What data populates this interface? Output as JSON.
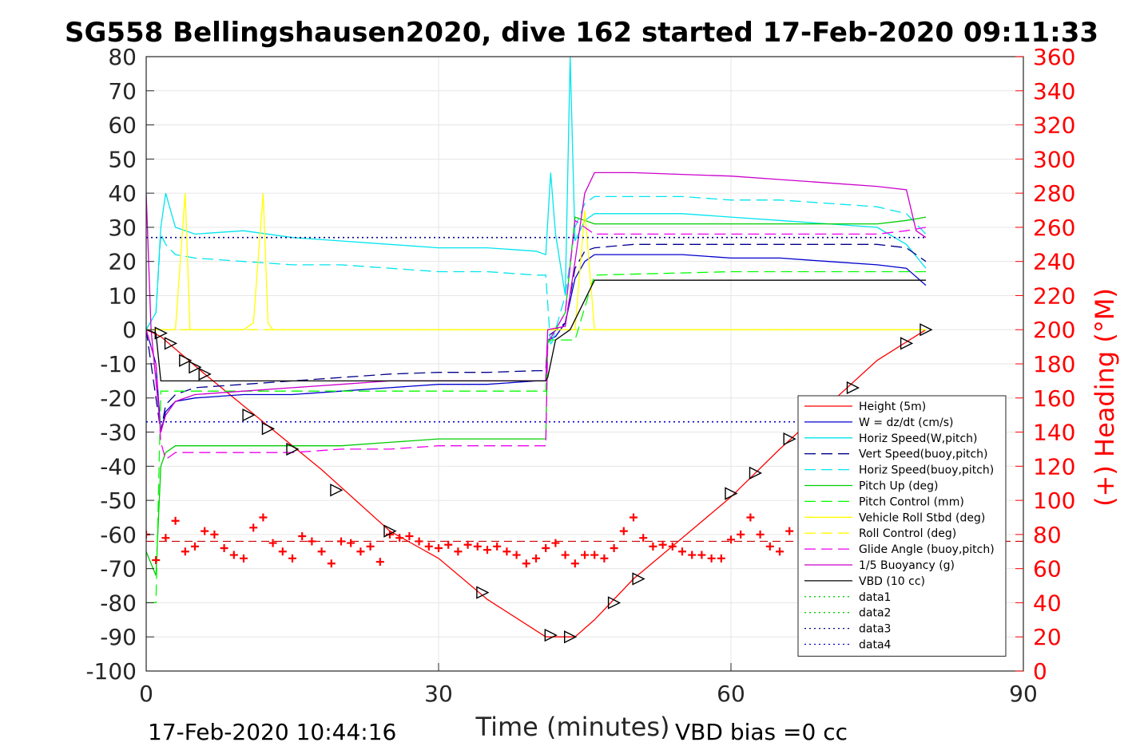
{
  "chart_data": {
    "type": "line",
    "title": "SG558 Bellingshausen2020, dive 162 started 17-Feb-2020 09:11:33",
    "xlabel": "Time (minutes)",
    "ylabel": "",
    "ylabel_right": "(+) Heading (°M)",
    "xlim": [
      0,
      90
    ],
    "ylim": [
      -100,
      80
    ],
    "ylim_right": [
      0,
      360
    ],
    "x_ticks": [
      "0",
      "30",
      "60",
      "90"
    ],
    "y_ticks": [
      "80",
      "70",
      "60",
      "50",
      "40",
      "30",
      "20",
      "10",
      "0",
      "-10",
      "-20",
      "-30",
      "-40",
      "-50",
      "-60",
      "-70",
      "-80",
      "-90",
      "-100"
    ],
    "y_ticks_right": [
      "360",
      "340",
      "320",
      "300",
      "280",
      "260",
      "240",
      "220",
      "200",
      "180",
      "160",
      "140",
      "120",
      "100",
      "80",
      "60",
      "40",
      "20",
      "0"
    ],
    "grid": true,
    "legend_position": "lower-right",
    "footer_left": "17-Feb-2020 10:44:16",
    "footer_right": "VBD bias =0 cc",
    "series": [
      {
        "name": "Height (5m)",
        "color": "#ff0000",
        "style": "solid",
        "x": [
          0,
          1.5,
          6,
          12,
          18,
          25,
          30,
          35,
          41,
          44,
          46,
          50,
          55,
          60,
          65,
          70,
          75,
          80
        ],
        "y": [
          0,
          -2,
          -13,
          -27,
          -41,
          -59,
          -67,
          -79,
          -90,
          -90,
          -85,
          -73,
          -61,
          -49,
          -35,
          -22,
          -9,
          0
        ]
      },
      {
        "name": "W = dz/dt (cm/s)",
        "color": "#0000cd",
        "style": "solid",
        "x": [
          0,
          1,
          1.5,
          2,
          3,
          5,
          10,
          15,
          20,
          25,
          30,
          35,
          40,
          41,
          41.2,
          42,
          43,
          44,
          45,
          46,
          50,
          55,
          60,
          65,
          70,
          75,
          78,
          80
        ],
        "y": [
          0,
          -10,
          -30,
          -24,
          -21,
          -20,
          -19,
          -19,
          -18,
          -17,
          -16,
          -16,
          -15,
          -15,
          -3,
          -2,
          2,
          15,
          20,
          22,
          22,
          22,
          21,
          21,
          20,
          19,
          18,
          13
        ]
      },
      {
        "name": "Horiz Speed(W,pitch)",
        "color": "#00e5ee",
        "style": "solid",
        "x": [
          0,
          1,
          1.5,
          2,
          3,
          5,
          10,
          15,
          20,
          25,
          30,
          35,
          40,
          41,
          41.5,
          42,
          43,
          43.5,
          44,
          45,
          46,
          50,
          55,
          60,
          65,
          70,
          75,
          78,
          80
        ],
        "y": [
          0,
          5,
          30,
          40,
          30,
          28,
          29,
          27,
          26,
          25,
          24,
          24,
          23,
          22,
          46,
          28,
          10,
          80,
          26,
          32,
          34,
          34,
          34,
          33,
          32,
          31,
          30,
          25,
          18
        ]
      },
      {
        "name": "Vert Speed(buoy,pitch)",
        "color": "#00008b",
        "style": "dashed",
        "x": [
          0,
          1.5,
          2,
          3,
          5,
          10,
          15,
          20,
          25,
          30,
          35,
          40,
          41,
          41.2,
          43,
          44,
          45,
          46,
          50,
          55,
          60,
          65,
          70,
          75,
          78,
          80
        ],
        "y": [
          0,
          -30,
          -22,
          -19,
          -17,
          -16,
          -15,
          -14,
          -13,
          -12.5,
          -12.5,
          -12,
          -12,
          -2,
          2,
          18,
          23,
          24,
          25,
          25,
          25,
          25,
          25,
          25,
          24,
          20
        ]
      },
      {
        "name": "Horiz Speed(buoy,pitch)",
        "color": "#00e5ee",
        "style": "dashed",
        "x": [
          0,
          1,
          1.5,
          2,
          3,
          5,
          10,
          15,
          20,
          25,
          30,
          35,
          40,
          41,
          41.5,
          43,
          44,
          45,
          46,
          50,
          55,
          60,
          65,
          70,
          75,
          78,
          80
        ],
        "y": [
          0,
          5,
          28,
          25,
          22,
          21,
          20,
          19,
          19,
          18,
          17,
          17,
          16,
          16,
          -5,
          10,
          30,
          37,
          39,
          39,
          39,
          38,
          38,
          37,
          36,
          34,
          28
        ]
      },
      {
        "name": "Pitch Up (deg)",
        "color": "#00cd00",
        "style": "solid",
        "x": [
          0,
          1,
          1.5,
          2,
          3,
          5,
          10,
          15,
          20,
          25,
          30,
          35,
          40,
          41,
          41.2,
          43,
          44,
          45,
          46,
          50,
          55,
          60,
          65,
          70,
          75,
          78,
          80
        ],
        "y": [
          -65,
          -72,
          -40,
          -36,
          -34,
          -34,
          -34,
          -34,
          -34,
          -33,
          -32,
          -32,
          -32,
          -32,
          -4,
          5,
          33,
          32,
          31,
          31,
          31,
          31,
          31,
          31,
          31,
          32,
          33
        ]
      },
      {
        "name": "Pitch Control (mm)",
        "color": "#00ff00",
        "style": "dashed",
        "x": [
          0,
          1,
          1.5,
          2,
          40,
          41,
          41.2,
          44,
          46,
          60,
          80
        ],
        "y": [
          -80,
          -80,
          -18,
          -18,
          -18,
          -18,
          -3,
          -3,
          16,
          17,
          17
        ]
      },
      {
        "name": "Vehicle Roll Stbd (deg)",
        "color": "#ffff00",
        "style": "solid",
        "x": [
          0,
          2,
          3,
          4,
          4.5,
          5,
          10,
          11,
          12,
          12.5,
          13,
          20,
          25,
          30,
          35,
          40,
          41,
          44,
          45,
          46,
          50,
          60,
          65,
          70,
          72,
          75,
          78,
          80
        ],
        "y": [
          0,
          0,
          0,
          40,
          0,
          0,
          0,
          2,
          40,
          2,
          0,
          0,
          0,
          0,
          0,
          0,
          0,
          0,
          35,
          0,
          0,
          0,
          0,
          0,
          0,
          0,
          0,
          0
        ]
      },
      {
        "name": "Roll Control (deg)",
        "color": "#ffff00",
        "style": "dashed",
        "x": [
          0,
          10,
          15,
          20,
          25,
          30,
          35,
          40,
          41,
          44,
          50,
          60,
          70,
          80
        ],
        "y": [
          0,
          0,
          0,
          0,
          0,
          0,
          0,
          0,
          0,
          0,
          0,
          0,
          0,
          0
        ]
      },
      {
        "name": "Glide Angle (buoy,pitch)",
        "color": "#ee00ee",
        "style": "dashed",
        "x": [
          0,
          1,
          1.5,
          2,
          3,
          5,
          10,
          15,
          20,
          25,
          30,
          35,
          40,
          41,
          41.2,
          43,
          44,
          45,
          46,
          50,
          55,
          60,
          65,
          70,
          75,
          78,
          80
        ],
        "y": [
          0,
          -10,
          -33,
          -38,
          -36,
          -36,
          -36,
          -36,
          -35,
          -35,
          -34,
          -34,
          -34,
          -34,
          -4,
          5,
          32,
          30,
          28,
          28,
          28,
          28,
          28,
          28,
          28,
          29,
          30
        ]
      },
      {
        "name": "1/5 Buoyancy (g)",
        "color": "#cc00cc",
        "style": "solid",
        "x": [
          0,
          0.5,
          1.5,
          2,
          3,
          5,
          10,
          15,
          20,
          25,
          30,
          35,
          40,
          41,
          41.2,
          43,
          44,
          45,
          46,
          50,
          55,
          60,
          65,
          70,
          75,
          78,
          79,
          80
        ],
        "y": [
          40,
          0,
          -30,
          -25,
          -21,
          -19,
          -18,
          -17,
          -16,
          -15,
          -15,
          -15,
          -15,
          -15,
          0,
          1,
          20,
          40,
          46,
          46,
          45.5,
          45,
          44,
          43,
          42,
          41,
          29,
          27
        ]
      },
      {
        "name": "VBD (10 cc)",
        "color": "#000000",
        "style": "solid",
        "x": [
          0,
          1,
          1.5,
          41,
          41.2,
          42,
          43.5,
          46,
          80
        ],
        "y": [
          0,
          -1,
          -15,
          -15,
          -14,
          -3,
          0,
          14.5,
          14.5
        ]
      },
      {
        "name": "data1",
        "color": "#00cd00",
        "style": "dotted",
        "x": [],
        "y": []
      },
      {
        "name": "data2",
        "color": "#00cd00",
        "style": "dotted",
        "x": [],
        "y": []
      },
      {
        "name": "data3",
        "color": "#00008b",
        "style": "dotted",
        "x": [
          0,
          80
        ],
        "y": [
          27,
          27
        ]
      },
      {
        "name": "data4",
        "color": "#0000cd",
        "style": "dotted",
        "x": [
          0,
          80
        ],
        "y": [
          -27,
          -27
        ]
      }
    ],
    "heading_series": {
      "color": "#ff0000",
      "marker": "+",
      "x": [
        0,
        1,
        2,
        3,
        4,
        5,
        6,
        7,
        8,
        9,
        10,
        11,
        12,
        13,
        14,
        15,
        16,
        17,
        18,
        19,
        20,
        21,
        22,
        23,
        24,
        25,
        26,
        27,
        28,
        29,
        30,
        31,
        32,
        33,
        34,
        35,
        36,
        37,
        38,
        39,
        40,
        41,
        42,
        43,
        44,
        45,
        46,
        47,
        48,
        49,
        50,
        51,
        52,
        53,
        54,
        55,
        56,
        57,
        58,
        59,
        60,
        61,
        62,
        63,
        64,
        65,
        66
      ],
      "y": [
        80,
        65,
        78,
        88,
        70,
        73,
        82,
        80,
        72,
        68,
        66,
        84,
        90,
        75,
        70,
        66,
        79,
        76,
        70,
        63,
        76,
        75,
        70,
        73,
        64,
        80,
        78,
        79,
        76,
        73,
        72,
        74,
        70,
        74,
        73,
        71,
        73,
        70,
        68,
        63,
        66,
        72,
        75,
        68,
        63,
        68,
        68,
        66,
        72,
        82,
        90,
        78,
        73,
        74,
        73,
        70,
        68,
        68,
        66,
        66,
        77,
        80,
        90,
        80,
        73,
        70,
        82
      ]
    },
    "heading_reference": {
      "color": "#cc0000",
      "style": "dashed",
      "y": 76
    },
    "vbd_markers": {
      "color": "#000000",
      "x": [
        1.5,
        2.5,
        4,
        5,
        6,
        10.5,
        12.5,
        15,
        19.5,
        25,
        34.5,
        41.5,
        43.5,
        48,
        50.5,
        60,
        62.5,
        66,
        72.5,
        78,
        80
      ],
      "y": [
        -1,
        -4,
        -9,
        -11,
        -13,
        -25,
        -29,
        -35,
        -47,
        -59,
        -77,
        -89.5,
        -90,
        -80,
        -73,
        -48,
        -42,
        -32,
        -17,
        -4,
        0
      ]
    }
  }
}
